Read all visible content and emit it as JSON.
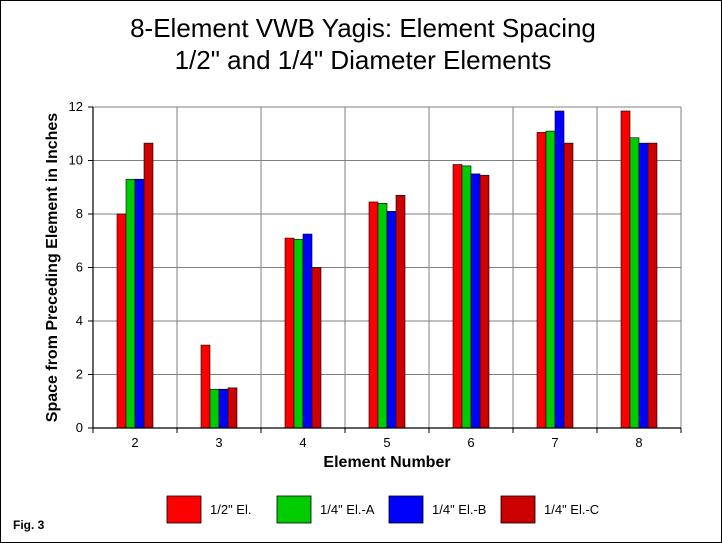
{
  "chart_data": {
    "type": "bar",
    "title_lines": [
      "8-Element VWB Yagis:  Element Spacing",
      "1/2\" and 1/4\" Diameter Elements"
    ],
    "xlabel": "Element Number",
    "ylabel": "Space from Preceding Element in Inches",
    "categories": [
      "2",
      "3",
      "4",
      "5",
      "6",
      "7",
      "8"
    ],
    "ylim": [
      0,
      12
    ],
    "yticks": [
      0,
      2,
      4,
      6,
      8,
      10,
      12
    ],
    "grid": true,
    "legend_position": "bottom",
    "series": [
      {
        "name": "1/2\" El.",
        "color": "#ff0000",
        "values": [
          8.0,
          3.1,
          7.1,
          8.45,
          9.85,
          11.05,
          11.85
        ]
      },
      {
        "name": "1/4\" El.-A",
        "color": "#00cc00",
        "values": [
          9.3,
          1.45,
          7.05,
          8.4,
          9.8,
          11.1,
          10.85
        ]
      },
      {
        "name": "1/4\" El.-B",
        "color": "#0000ff",
        "values": [
          9.3,
          1.45,
          7.25,
          8.1,
          9.5,
          11.85,
          10.65
        ]
      },
      {
        "name": "1/4\" El.-C",
        "color": "#cc0000",
        "values": [
          10.65,
          1.5,
          6.0,
          8.7,
          9.45,
          10.65,
          10.65
        ]
      }
    ]
  },
  "footer": {
    "fig_label": "Fig. 3"
  }
}
